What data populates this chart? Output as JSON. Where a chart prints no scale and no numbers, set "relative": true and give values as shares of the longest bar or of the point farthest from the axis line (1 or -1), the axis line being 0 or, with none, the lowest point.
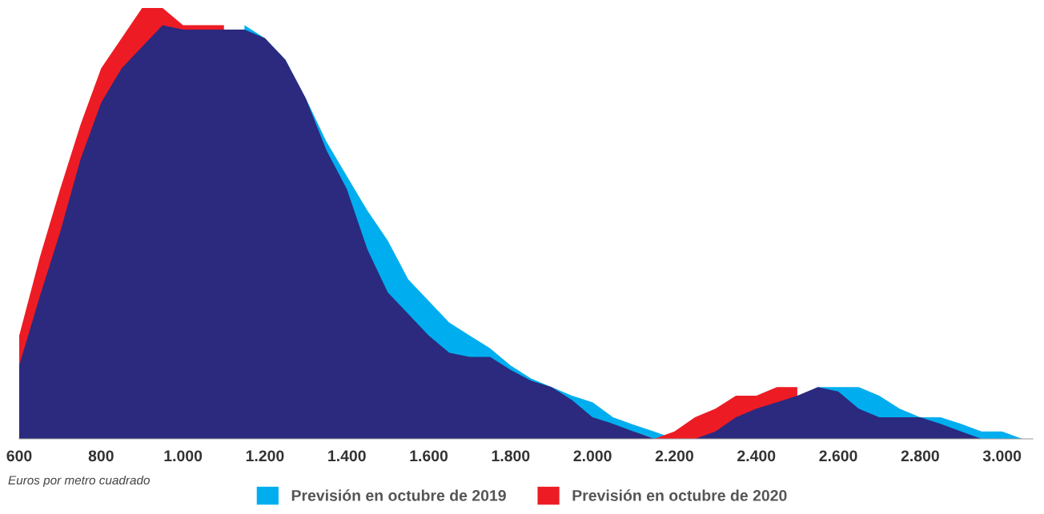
{
  "chart_data": {
    "type": "area",
    "relative": true,
    "x": [
      600,
      650,
      700,
      750,
      800,
      850,
      900,
      950,
      1000,
      1050,
      1100,
      1150,
      1200,
      1250,
      1300,
      1350,
      1400,
      1450,
      1500,
      1550,
      1600,
      1650,
      1700,
      1750,
      1800,
      1850,
      1900,
      1950,
      2000,
      2050,
      2100,
      2150,
      2200,
      2250,
      2300,
      2350,
      2400,
      2450,
      2500,
      2550,
      2600,
      2650,
      2700,
      2750,
      2800,
      2850,
      2900,
      2950,
      3000,
      3050
    ],
    "series": [
      {
        "name": "Previsión en octubre de 2019",
        "color": "#00aeef",
        "values": [
          null,
          null,
          null,
          null,
          null,
          null,
          null,
          null,
          null,
          null,
          null,
          0.96,
          0.93,
          0.88,
          0.79,
          0.69,
          0.61,
          0.53,
          0.46,
          0.37,
          0.32,
          0.27,
          0.24,
          0.21,
          0.17,
          0.14,
          0.12,
          0.1,
          0.085,
          0.05,
          0.033,
          0.017,
          0,
          0,
          null,
          null,
          null,
          null,
          null,
          0.12,
          0.12,
          0.12,
          0.1,
          0.07,
          0.05,
          0.05,
          0.035,
          0.017,
          0.017,
          0
        ]
      },
      {
        "name": "Previsión en octubre de 2020",
        "color": "#ed1c24",
        "values": [
          0.24,
          0.42,
          0.58,
          0.73,
          0.86,
          0.93,
          1,
          1,
          0.96,
          0.96,
          0.96,
          null,
          null,
          null,
          null,
          null,
          null,
          null,
          null,
          null,
          null,
          null,
          null,
          null,
          null,
          null,
          null,
          null,
          null,
          null,
          0.017,
          0,
          0.017,
          0.05,
          0.07,
          0.1,
          0.1,
          0.12,
          0.12,
          null,
          null,
          null,
          null,
          null,
          null,
          null,
          null,
          null,
          null,
          null
        ]
      },
      {
        "color": "#2b2a7e",
        "values": [
          0.17,
          0.33,
          0.48,
          0.65,
          0.78,
          0.86,
          0.91,
          0.96,
          0.95,
          0.95,
          0.95,
          0.95,
          0.93,
          0.88,
          0.79,
          0.67,
          0.58,
          0.44,
          0.34,
          0.29,
          0.24,
          0.2,
          0.19,
          0.19,
          0.16,
          0.135,
          0.12,
          0.09,
          0.05,
          0.035,
          0.017,
          0,
          0,
          0,
          0.017,
          0.05,
          0.07,
          0.085,
          0.1,
          0.12,
          0.11,
          0.07,
          0.05,
          0.05,
          0.05,
          0.035,
          0.017,
          0,
          0,
          0
        ]
      }
    ],
    "xlim": [
      600,
      3075
    ],
    "xticks": [
      600,
      800,
      {
        "value": 1000,
        "label": "1.000"
      },
      {
        "value": 1200,
        "label": "1.200"
      },
      {
        "value": 1400,
        "label": "1.400"
      },
      {
        "value": 1600,
        "label": "1.600"
      },
      {
        "value": 1800,
        "label": "1.800"
      },
      {
        "value": 2000,
        "label": "2.000"
      },
      {
        "value": 2200,
        "label": "2.200"
      },
      {
        "value": 2400,
        "label": "2.400"
      },
      {
        "value": 2600,
        "label": "2.600"
      },
      {
        "value": 2800,
        "label": "2.800"
      },
      {
        "value": 3000,
        "label": "3.000"
      }
    ],
    "annotations": [
      "Euros por metro cuadrado"
    ],
    "legend": "bottom",
    "grid": false
  }
}
